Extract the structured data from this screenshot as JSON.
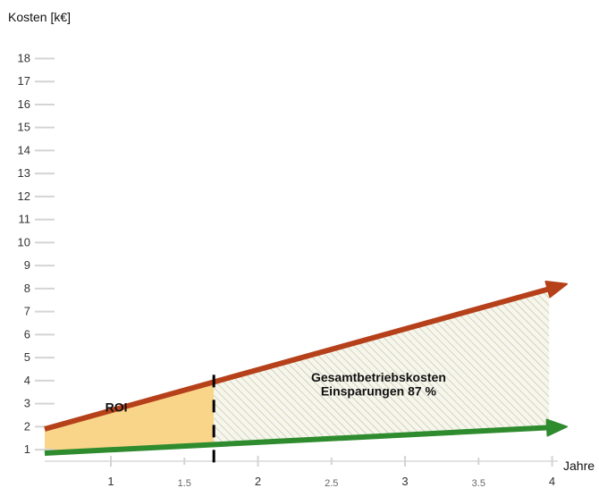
{
  "chart_data": {
    "type": "area",
    "ylabel": "Kosten [k€]",
    "xlabel": "Jahre",
    "xlim": [
      0.55,
      4.1
    ],
    "ylim": [
      0.5,
      18.6
    ],
    "x_ticks": [
      1,
      2,
      3,
      4
    ],
    "x_minor_ticks": [
      1.5,
      2.5,
      3.5
    ],
    "y_ticks": [
      1,
      2,
      3,
      4,
      5,
      6,
      7,
      8,
      9,
      10,
      11,
      12,
      13,
      14,
      15,
      16,
      17,
      18
    ],
    "grid": false,
    "series": [
      {
        "x": [
          0.55,
          4.1
        ],
        "y": [
          1.9,
          8.2
        ],
        "color": "#b5401a"
      },
      {
        "x": [
          0.55,
          4.1
        ],
        "y": [
          0.85,
          2.0
        ],
        "color": "#2e8b2e"
      }
    ],
    "regions": [
      {
        "label": "ROI",
        "x_range": [
          0.55,
          1.7
        ],
        "color": "#f9d58a"
      },
      {
        "label": "Gesamtbetriebskosten",
        "label2": "Einsparungen 87 %",
        "x_range": [
          1.7,
          3.98
        ],
        "pattern": "hatch"
      }
    ],
    "break_even_x": 1.7
  }
}
